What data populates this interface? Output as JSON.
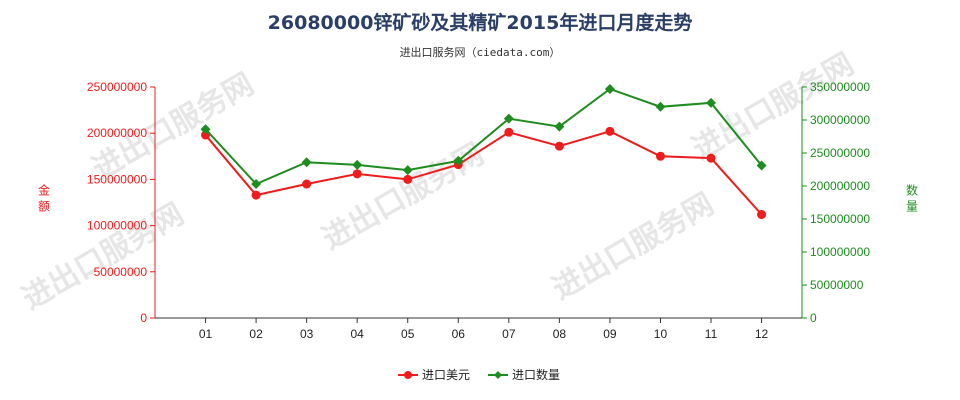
{
  "title": "26080000锌矿砂及其精矿2015年进口月度走势",
  "subtitle": "进出口服务网（ciedata.com）",
  "watermark": "进出口服务网",
  "chart_data": {
    "type": "line",
    "categories": [
      "01",
      "02",
      "03",
      "04",
      "05",
      "06",
      "07",
      "08",
      "09",
      "10",
      "11",
      "12"
    ],
    "y_left": {
      "label": "金额",
      "ylim": [
        0,
        250000000
      ],
      "ticks": [
        "0",
        "50000000",
        "100000000",
        "150000000",
        "200000000",
        "250000000"
      ],
      "color": "#ee1c1c"
    },
    "y_right": {
      "label": "数量",
      "ylim": [
        0,
        350000000
      ],
      "ticks": [
        "0",
        "50000000",
        "100000000",
        "150000000",
        "200000000",
        "250000000",
        "300000000",
        "350000000"
      ],
      "color": "#1e8c1e"
    },
    "series": [
      {
        "name": "进口美元",
        "axis": "left",
        "color": "#ee1c1c",
        "values": [
          198000000,
          133000000,
          145000000,
          156000000,
          150000000,
          166000000,
          201000000,
          186000000,
          202000000,
          175000000,
          173000000,
          112000000
        ]
      },
      {
        "name": "进口数量",
        "axis": "right",
        "color": "#1e8c1e",
        "values": [
          286000000,
          203000000,
          236000000,
          232000000,
          224000000,
          238000000,
          302000000,
          290000000,
          347000000,
          320000000,
          326000000,
          231000000
        ]
      }
    ],
    "grid": false,
    "legend": "bottom-center"
  }
}
